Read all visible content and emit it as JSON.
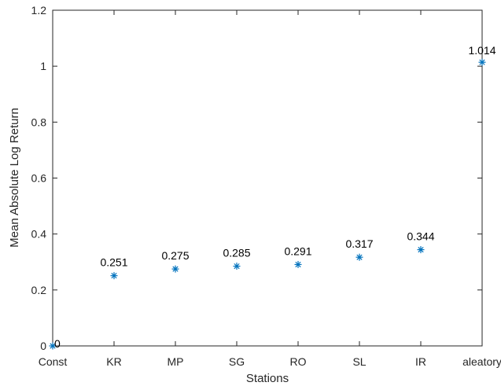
{
  "chart_data": {
    "type": "scatter",
    "title": "",
    "xlabel": "Stations",
    "ylabel": "Mean Absolute Log Return",
    "categories": [
      "Const",
      "KR",
      "MP",
      "SG",
      "RO",
      "SL",
      "IR",
      "aleatory"
    ],
    "values": [
      0,
      0.251,
      0.275,
      0.285,
      0.291,
      0.317,
      0.344,
      1.014
    ],
    "data_labels": [
      "0",
      "0.251",
      "0.275",
      "0.285",
      "0.291",
      "0.317",
      "0.344",
      "1.014"
    ],
    "ylim": [
      0,
      1.2
    ],
    "yticks": [
      0,
      0.2,
      0.4,
      0.6,
      0.8,
      1,
      1.2
    ],
    "ytick_labels": [
      "0",
      "0.2",
      "0.4",
      "0.6",
      "0.8",
      "1",
      "1.2"
    ],
    "grid": false,
    "legend": "none",
    "marker": "asterisk",
    "marker_color": "#0072BD",
    "axis_color": "#262626"
  }
}
